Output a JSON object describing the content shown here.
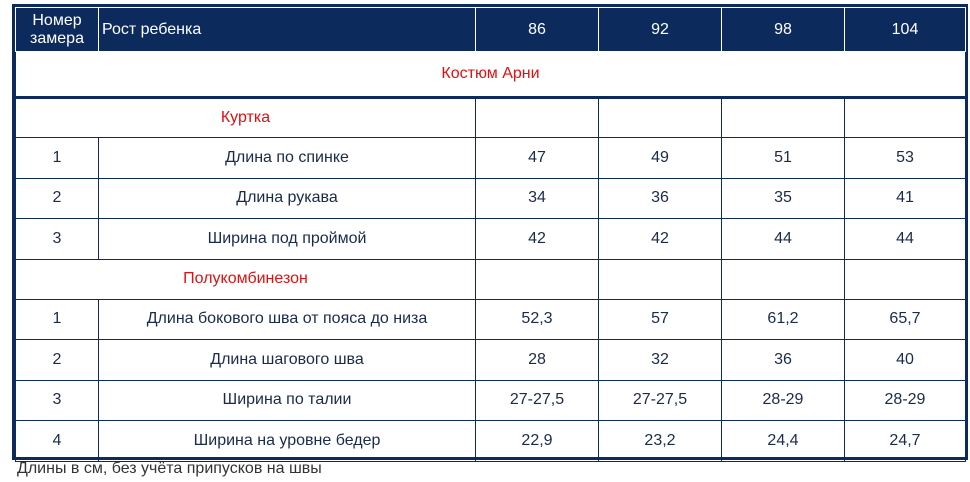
{
  "header": {
    "num_label": "Номер замера",
    "height_label": "Рост ребенка",
    "sizes": [
      "86",
      "92",
      "98",
      "104"
    ]
  },
  "title": "Костюм Арни",
  "sections": [
    {
      "name": "Куртка",
      "rows": [
        {
          "num": "1",
          "name": "Длина по спинке",
          "values": [
            "47",
            "49",
            "51",
            "53"
          ]
        },
        {
          "num": "2",
          "name": "Длина рукава",
          "values": [
            "34",
            "36",
            "35",
            "41"
          ]
        },
        {
          "num": "3",
          "name": "Ширина под проймой",
          "values": [
            "42",
            "42",
            "44",
            "44"
          ]
        }
      ]
    },
    {
      "name": "Полукомбинезон",
      "rows": [
        {
          "num": "1",
          "name": "Длина бокового шва от пояса до низа",
          "values": [
            "52,3",
            "57",
            "61,2",
            "65,7"
          ]
        },
        {
          "num": "2",
          "name": "Длина шагового шва",
          "values": [
            "28",
            "32",
            "36",
            "40"
          ]
        },
        {
          "num": "3",
          "name": "Ширина по талии",
          "values": [
            "27-27,5",
            "27-27,5",
            "28-29",
            "28-29"
          ]
        },
        {
          "num": "4",
          "name": "Ширина на уровне бедер",
          "values": [
            "22,9",
            "23,2",
            "24,4",
            "24,7"
          ]
        }
      ]
    }
  ],
  "footnote": "Длины  в см, без учёта припусков на швы",
  "colors": {
    "header_bg": "#0d2a5c",
    "accent_red": "#e01010"
  }
}
